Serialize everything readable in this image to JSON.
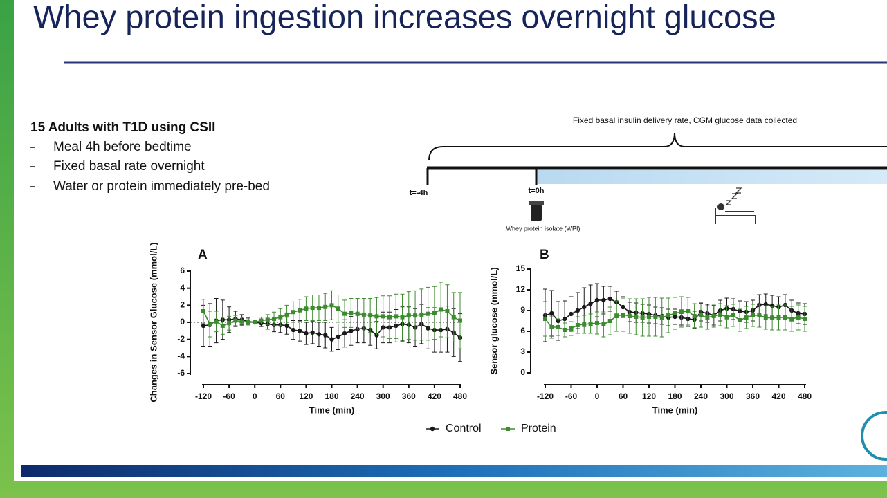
{
  "slide": {
    "title": "Whey protein ingestion increases overnight glucose",
    "study": {
      "heading": "15 Adults with T1D using CSII",
      "bullets": [
        "Meal 4h before bedtime",
        "Fixed basal rate overnight",
        "Water or protein immediately pre-bed"
      ]
    },
    "timeline": {
      "label": "Fixed basal insulin delivery rate, CGM glucose data collected",
      "start": "t=-4h",
      "zero": "t=0h",
      "intervention": "Whey protein isolate (WPI)"
    }
  },
  "chart_data": [
    {
      "type": "line",
      "title": "A",
      "x_label": "Time (min)",
      "y_label": "Changes in Sensor Glucose (mmol/L)",
      "xlim": [
        -120,
        480
      ],
      "xticks": [
        -120,
        -60,
        0,
        60,
        120,
        180,
        240,
        300,
        360,
        420,
        480
      ],
      "ylim": [
        -6,
        6
      ],
      "yticks": [
        -6,
        -4,
        -2,
        0,
        2,
        4,
        6
      ],
      "reference_line": 0,
      "x": [
        -120,
        -105,
        -90,
        -75,
        -60,
        -45,
        -30,
        -15,
        0,
        15,
        30,
        45,
        60,
        75,
        90,
        105,
        120,
        135,
        150,
        165,
        180,
        195,
        210,
        225,
        240,
        255,
        270,
        285,
        300,
        315,
        330,
        345,
        360,
        375,
        390,
        405,
        420,
        435,
        450,
        465,
        480
      ],
      "series": [
        {
          "name": "Control",
          "color": "#1a1a1a",
          "marker": "circle",
          "values": [
            -0.4,
            -0.3,
            0.2,
            0.3,
            0.3,
            0.4,
            0.3,
            0.1,
            0,
            -0.1,
            -0.2,
            -0.3,
            -0.3,
            -0.4,
            -0.9,
            -1.0,
            -1.3,
            -1.2,
            -1.4,
            -1.5,
            -2.0,
            -1.7,
            -1.3,
            -1.0,
            -0.8,
            -0.7,
            -0.9,
            -1.5,
            -0.6,
            -0.6,
            -0.4,
            -0.2,
            -0.3,
            -0.6,
            -0.2,
            -0.7,
            -0.9,
            -0.9,
            -0.8,
            -1.2,
            -1.8
          ],
          "errors": [
            2.4,
            2.5,
            2.6,
            2.3,
            1.5,
            0.9,
            0.6,
            0.4,
            0,
            0.4,
            0.6,
            0.8,
            0.9,
            1.0,
            1.1,
            1.2,
            1.3,
            1.3,
            1.4,
            1.5,
            1.4,
            1.5,
            1.6,
            1.7,
            1.6,
            1.7,
            1.8,
            1.6,
            1.8,
            1.8,
            1.9,
            2.0,
            2.1,
            2.2,
            2.3,
            2.4,
            2.6,
            2.6,
            2.7,
            2.8,
            2.8
          ]
        },
        {
          "name": "Protein",
          "color": "#3d8b2f",
          "marker": "square",
          "values": [
            1.3,
            -0.2,
            0.1,
            -0.4,
            -0.1,
            0.2,
            0.1,
            0,
            0,
            0.2,
            0.3,
            0.4,
            0.6,
            0.9,
            1.2,
            1.4,
            1.6,
            1.7,
            1.7,
            1.8,
            2.0,
            1.6,
            1.0,
            1.1,
            1.0,
            0.9,
            0.8,
            0.7,
            0.7,
            0.6,
            0.7,
            0.6,
            0.8,
            0.8,
            0.9,
            1.0,
            1.1,
            1.5,
            1.3,
            0.6,
            0.2
          ],
          "errors": [
            1.4,
            1.5,
            1.2,
            1.0,
            0.8,
            0.6,
            0.5,
            0.3,
            0,
            0.4,
            0.6,
            0.8,
            1.0,
            1.1,
            1.2,
            1.3,
            1.4,
            1.5,
            1.5,
            1.6,
            1.7,
            1.6,
            1.6,
            1.7,
            1.8,
            1.9,
            2.0,
            2.2,
            2.4,
            2.5,
            2.6,
            2.7,
            2.8,
            2.9,
            3.0,
            3.1,
            3.1,
            3.2,
            3.1,
            2.9,
            3.3
          ]
        }
      ]
    },
    {
      "type": "line",
      "title": "B",
      "x_label": "Time (min)",
      "y_label": "Sensor glucose (mmol/L)",
      "xlim": [
        -120,
        480
      ],
      "xticks": [
        -120,
        -60,
        0,
        60,
        120,
        180,
        240,
        300,
        360,
        420,
        480
      ],
      "ylim": [
        0,
        15
      ],
      "yticks": [
        0,
        3,
        6,
        9,
        12,
        15
      ],
      "x": [
        -120,
        -105,
        -90,
        -75,
        -60,
        -45,
        -30,
        -15,
        0,
        15,
        30,
        45,
        60,
        75,
        90,
        105,
        120,
        135,
        150,
        165,
        180,
        195,
        210,
        225,
        240,
        255,
        270,
        285,
        300,
        315,
        330,
        345,
        360,
        375,
        390,
        405,
        420,
        435,
        450,
        465,
        480
      ],
      "series": [
        {
          "color": "#1a1a1a",
          "marker": "circle",
          "values": [
            8.3,
            8.6,
            7.5,
            7.8,
            8.5,
            9.0,
            9.5,
            10.0,
            10.5,
            10.5,
            10.7,
            10.2,
            9.5,
            8.8,
            8.7,
            8.6,
            8.5,
            8.3,
            8.2,
            8.0,
            8.1,
            8.0,
            7.8,
            7.7,
            8.8,
            8.6,
            8.3,
            9.0,
            9.3,
            9.2,
            8.9,
            8.8,
            9.0,
            9.8,
            9.9,
            9.7,
            9.5,
            9.8,
            9.0,
            8.6,
            8.5
          ],
          "errors": [
            3.8,
            3.3,
            2.8,
            2.6,
            2.5,
            2.6,
            2.8,
            2.7,
            2.4,
            2.0,
            1.8,
            1.6,
            1.5,
            1.4,
            1.4,
            1.3,
            1.3,
            1.2,
            1.2,
            1.2,
            1.1,
            1.1,
            1.1,
            1.2,
            1.3,
            1.3,
            1.4,
            1.5,
            1.5,
            1.5,
            1.5,
            1.5,
            1.5,
            1.5,
            1.5,
            1.5,
            1.5,
            1.5,
            1.5,
            1.5,
            1.5
          ]
        },
        {
          "color": "#3d8b2f",
          "marker": "square",
          "values": [
            7.8,
            6.6,
            6.6,
            6.2,
            6.4,
            6.9,
            7.0,
            7.1,
            7.2,
            7.0,
            7.5,
            8.2,
            8.4,
            8.2,
            8.1,
            8.0,
            8.1,
            8.1,
            8.0,
            8.3,
            8.6,
            8.8,
            8.9,
            8.2,
            8.3,
            8.0,
            8.2,
            8.4,
            8.1,
            8.3,
            7.6,
            8.0,
            8.3,
            8.3,
            8.0,
            7.9,
            8.0,
            8.0,
            7.8,
            8.0,
            7.8
          ],
          "errors": [
            2.5,
            1.6,
            1.2,
            1.0,
            1.0,
            1.2,
            1.3,
            1.4,
            1.6,
            1.8,
            2.0,
            2.2,
            2.4,
            2.5,
            2.6,
            2.7,
            2.8,
            2.8,
            2.8,
            2.5,
            2.3,
            2.2,
            2.0,
            1.8,
            1.7,
            1.7,
            1.6,
            1.6,
            1.6,
            1.6,
            1.6,
            1.6,
            1.6,
            1.7,
            1.7,
            1.7,
            1.8,
            1.8,
            1.8,
            1.8,
            1.8
          ]
        }
      ]
    }
  ]
}
